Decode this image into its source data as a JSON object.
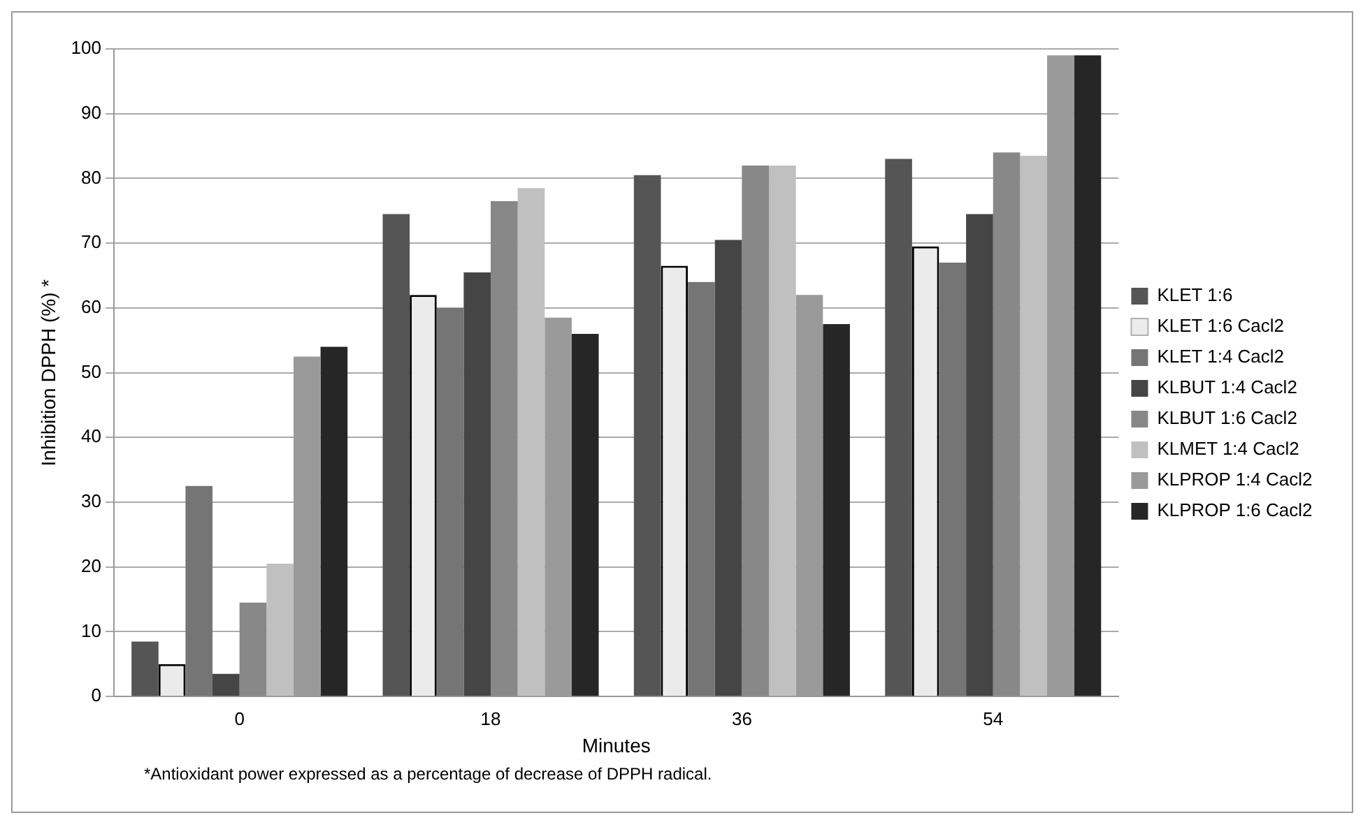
{
  "chart_data": {
    "type": "bar",
    "xlabel": "Minutes",
    "ylabel": "Inhibition DPPH (%) *",
    "categories": [
      "0",
      "18",
      "36",
      "54"
    ],
    "series": [
      {
        "name": "KLET 1:6",
        "color": "#555555",
        "values": [
          8.5,
          74.5,
          80.5,
          83
        ]
      },
      {
        "name": "KLET 1:6 Cacl2",
        "color": "#ebebeb",
        "values": [
          5,
          62,
          66.5,
          69.5
        ]
      },
      {
        "name": "KLET 1:4 Cacl2",
        "color": "#757575",
        "values": [
          32.5,
          60,
          64,
          67
        ]
      },
      {
        "name": "KLBUT 1:4 Cacl2",
        "color": "#454545",
        "values": [
          3.5,
          65.5,
          70.5,
          74.5
        ]
      },
      {
        "name": "KLBUT 1:6 Cacl2",
        "color": "#888888",
        "values": [
          14.5,
          76.5,
          82,
          84
        ]
      },
      {
        "name": "KLMET 1:4 Cacl2",
        "color": "#c0c0c0",
        "values": [
          20.5,
          78.5,
          82,
          83.5
        ]
      },
      {
        "name": "KLPROP 1:4 Cacl2",
        "color": "#9a9a9a",
        "values": [
          52.5,
          58.5,
          62,
          99
        ]
      },
      {
        "name": "KLPROP 1:6 Cacl2",
        "color": "#262626",
        "values": [
          54,
          56,
          57.5,
          99
        ]
      }
    ],
    "ylim": [
      0,
      100
    ],
    "yticks": [
      0,
      10,
      20,
      30,
      40,
      50,
      60,
      70,
      80,
      90,
      100
    ],
    "grid": "y",
    "legend": "right",
    "annotations": [
      "*Antioxidant power expressed as a percentage of decrease of DPPH radical."
    ]
  }
}
